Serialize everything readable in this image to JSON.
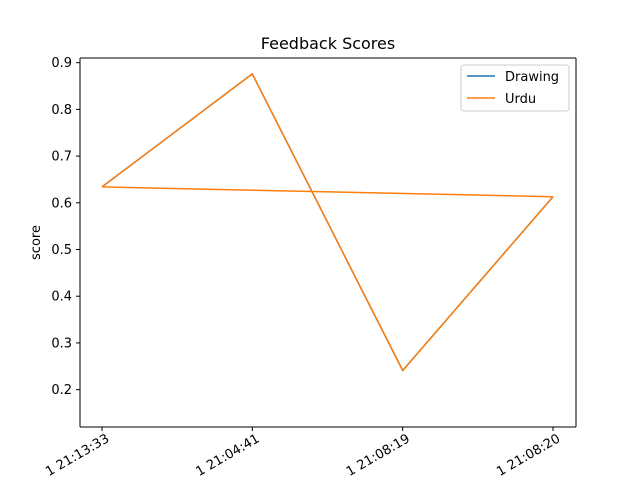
{
  "chart_data": {
    "type": "line",
    "title": "Feedback Scores",
    "xlabel": "",
    "ylabel": "score",
    "categories": [
      "1  21:13:33",
      "1  21:04:41",
      "1  21:08:19",
      "1  21:08:20"
    ],
    "ylim": [
      0.12,
      0.91
    ],
    "yticks": [
      0.2,
      0.3,
      0.4,
      0.5,
      0.6,
      0.7,
      0.8,
      0.9
    ],
    "grid": false,
    "legend": "top-right",
    "series": [
      {
        "name": "Drawing",
        "color": "#1f77b4",
        "values": [
          0.634,
          0.876,
          0.241,
          0.613
        ]
      },
      {
        "name": "Urdu",
        "color": "#ff7f0e",
        "values": [
          0.634,
          0.876,
          0.241,
          0.613
        ]
      }
    ],
    "extra_segments": [
      {
        "series": "Urdu",
        "from": 0,
        "to": 3
      }
    ]
  }
}
